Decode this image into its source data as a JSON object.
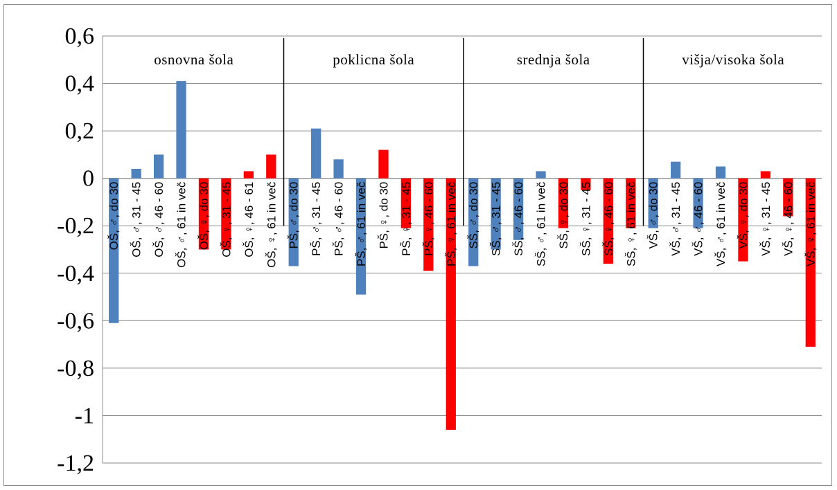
{
  "chart_data": {
    "type": "bar",
    "ylim": [
      -1.2,
      0.6
    ],
    "yticks": [
      0.6,
      0.4,
      0.2,
      0,
      -0.2,
      -0.4,
      -0.6,
      -0.8,
      -1,
      -1.2
    ],
    "ytick_labels": [
      "0,6",
      "0,4",
      "0,2",
      "0",
      "-0,2",
      "-0,4",
      "-0,6",
      "-0,8",
      "-1",
      "-1,2"
    ],
    "grid": true,
    "legend": "none",
    "colors": {
      "male": "#4f81bd",
      "female": "#ff0000"
    },
    "group_labels": [
      "osnovna šola",
      "poklicna šola",
      "srednja šola",
      "višja/visoka šola"
    ],
    "categories": [
      "OŠ, ♂, do 30",
      "OŠ, ♂, 31 - 45",
      "OŠ, ♂, 46 - 60",
      "OŠ, ♂, 61 in več",
      "OŠ, ♀, do 30",
      "OŠ, ♀, 31 - 45",
      "OŠ, ♀, 46 - 61",
      "OŠ, ♀, 61 in več",
      "PŠ, ♂, do 30",
      "PŠ, ♂, 31 - 45",
      "PŠ, ♂, 46 - 60",
      "PŠ, ♂, 61 in več",
      "PŠ, ♀, do 30",
      "PŠ, ♀, 31 - 45",
      "PŠ, ♀, 46 - 60",
      "PŠ, ♀, 61 in več",
      "SŠ, ♂, do 30",
      "SŠ, ♂, 31 - 45",
      "SŠ, ♂, 46 - 60",
      "SŠ, ♂, 61 in več",
      "SŠ, ♀, do 30",
      "SŠ, ♀, 31 - 45",
      "SŠ, ♀, 46 - 60",
      "SŠ, ♀, 61 in več",
      "VŠ, ♂, do 30",
      "VŠ, ♂, 31 - 45",
      "VŠ, ♂, 46 - 60",
      "VŠ, ♂, 61 in več",
      "VŠ, ♀, do 30",
      "VŠ, ♀, 31 - 45",
      "VŠ, ♀, 46 - 60",
      "VŠ, ♀, 61 in več"
    ],
    "values": [
      -0.61,
      0.04,
      0.1,
      0.41,
      -0.3,
      -0.3,
      0.03,
      0.1,
      -0.37,
      0.21,
      0.08,
      -0.49,
      0.12,
      -0.21,
      -0.39,
      -1.06,
      -0.37,
      -0.3,
      -0.26,
      0.03,
      -0.21,
      -0.05,
      -0.36,
      -0.21,
      -0.21,
      0.07,
      -0.21,
      0.05,
      -0.35,
      0.03,
      -0.16,
      -0.71
    ],
    "sexes": [
      "male",
      "male",
      "male",
      "male",
      "female",
      "female",
      "female",
      "female",
      "male",
      "male",
      "male",
      "male",
      "female",
      "female",
      "female",
      "female",
      "male",
      "male",
      "male",
      "male",
      "female",
      "female",
      "female",
      "female",
      "male",
      "male",
      "male",
      "male",
      "female",
      "female",
      "female",
      "female"
    ]
  }
}
